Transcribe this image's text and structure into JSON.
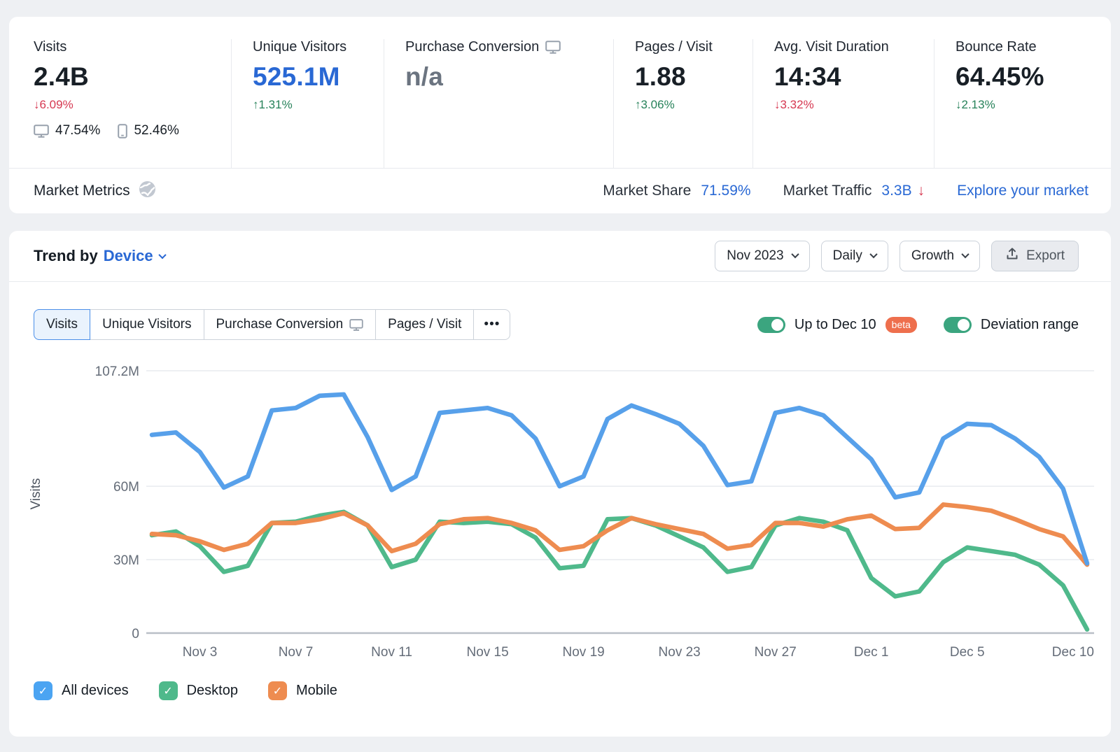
{
  "metrics": [
    {
      "label": "Visits",
      "value": "2.4B",
      "delta": "↓6.09%",
      "desktop_share": "47.54%",
      "mobile_share": "52.46%"
    },
    {
      "label": "Unique Visitors",
      "value": "525.1M",
      "delta": "↑1.31%"
    },
    {
      "label": "Purchase Conversion",
      "value": "n/a"
    },
    {
      "label": "Pages / Visit",
      "value": "1.88",
      "delta": "↑3.06%"
    },
    {
      "label": "Avg. Visit Duration",
      "value": "14:34",
      "delta": "↓3.32%"
    },
    {
      "label": "Bounce Rate",
      "value": "64.45%",
      "delta": "↓2.13%"
    }
  ],
  "market": {
    "title": "Market Metrics",
    "share_label": "Market Share",
    "share_value": "71.59%",
    "traffic_label": "Market Traffic",
    "traffic_value": "3.3B",
    "traffic_arrow": "↓",
    "link": "Explore your market"
  },
  "trend": {
    "title_prefix": "Trend by",
    "title_selector": "Device",
    "period": "Nov 2023",
    "granularity": "Daily",
    "mode": "Growth",
    "export_label": "Export"
  },
  "tabs": [
    {
      "label": "Visits",
      "active": true
    },
    {
      "label": "Unique Visitors"
    },
    {
      "label": "Purchase Conversion"
    },
    {
      "label": "Pages / Visit"
    },
    {
      "label": "•••"
    }
  ],
  "toggles": [
    {
      "label": "Up to Dec 10",
      "badge": "beta",
      "on": true
    },
    {
      "label": "Deviation range",
      "on": true
    }
  ],
  "legend": [
    {
      "label": "All devices",
      "color": "#4ba4f2"
    },
    {
      "label": "Desktop",
      "color": "#4fb98b"
    },
    {
      "label": "Mobile",
      "color": "#ee8c50"
    }
  ],
  "chart_data": {
    "type": "line",
    "title": "Trend by Device — Visits, daily, Nov 1 – Dec 10 2023",
    "ylabel": "Visits",
    "unit": "M",
    "ylim": [
      0,
      107.2
    ],
    "grid": "horizontal",
    "legend_position": "bottom",
    "x": [
      "Nov 1",
      "Nov 2",
      "Nov 3",
      "Nov 4",
      "Nov 5",
      "Nov 6",
      "Nov 7",
      "Nov 8",
      "Nov 9",
      "Nov 10",
      "Nov 11",
      "Nov 12",
      "Nov 13",
      "Nov 14",
      "Nov 15",
      "Nov 16",
      "Nov 17",
      "Nov 18",
      "Nov 19",
      "Nov 20",
      "Nov 21",
      "Nov 22",
      "Nov 23",
      "Nov 24",
      "Nov 25",
      "Nov 26",
      "Nov 27",
      "Nov 28",
      "Nov 29",
      "Nov 30",
      "Dec 1",
      "Dec 2",
      "Dec 3",
      "Dec 4",
      "Dec 5",
      "Dec 6",
      "Dec 7",
      "Dec 8",
      "Dec 9",
      "Dec 10"
    ],
    "x_tick_indices": [
      2,
      6,
      10,
      14,
      18,
      22,
      26,
      30,
      34,
      39
    ],
    "x_tick_labels": [
      "Nov 3",
      "Nov 7",
      "Nov 11",
      "Nov 15",
      "Nov 19",
      "Nov 23",
      "Nov 27",
      "Dec 1",
      "Dec 5",
      "Dec 10"
    ],
    "y_ticks": [
      {
        "label": "0",
        "value": 0
      },
      {
        "label": "30M",
        "value": 30
      },
      {
        "label": "60M",
        "value": 60
      },
      {
        "label": "107.2M",
        "value": 107.2
      }
    ],
    "series": [
      {
        "name": "Desktop",
        "color": "#4fb98b",
        "values": [
          40,
          41.5,
          35.5,
          25,
          27.5,
          45,
          45.5,
          48,
          49.5,
          44,
          27,
          30,
          45.5,
          45,
          45.5,
          44.5,
          39,
          26.5,
          27.5,
          46.5,
          47,
          44,
          39.5,
          35,
          25,
          27,
          44,
          47,
          45.5,
          42,
          22.5,
          15,
          17,
          29,
          35,
          33.5,
          32,
          28,
          19.5,
          1.5
        ]
      },
      {
        "name": "Mobile",
        "color": "#ee8c50",
        "values": [
          40.5,
          40,
          37.5,
          34,
          36.5,
          45,
          45,
          46.5,
          49,
          44,
          33.5,
          36.5,
          44.5,
          46.5,
          47,
          45,
          42,
          34,
          35.5,
          42,
          47,
          44.5,
          42.5,
          40.5,
          34.5,
          36,
          45,
          45,
          43.5,
          46.5,
          48,
          42.5,
          43,
          52.5,
          51.5,
          50,
          46.5,
          42.5,
          39.5,
          28
        ]
      },
      {
        "name": "All devices",
        "color": "#57a0ea",
        "values": [
          81,
          82,
          74,
          59.5,
          64,
          91,
          92,
          97,
          97.5,
          80,
          58.5,
          64,
          90,
          91,
          92,
          89,
          79.5,
          60,
          64,
          87.5,
          93,
          89.5,
          85.5,
          76.5,
          60.5,
          62,
          90,
          92,
          89,
          80,
          71,
          55.5,
          57.5,
          79.5,
          85.5,
          85,
          79.5,
          72,
          59,
          28.5
        ]
      }
    ]
  }
}
